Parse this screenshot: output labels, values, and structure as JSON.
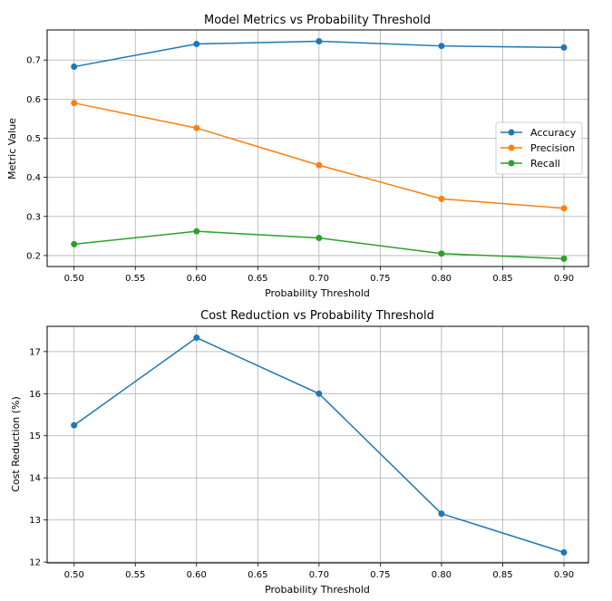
{
  "chart_data": [
    {
      "type": "line",
      "title": "Model Metrics vs Probability Threshold",
      "xlabel": "Probability Threshold",
      "ylabel": "Metric Value",
      "x": [
        0.5,
        0.6,
        0.7,
        0.8,
        0.9
      ],
      "xlim": [
        0.478,
        0.92
      ],
      "ylim": [
        0.172,
        0.777
      ],
      "xticks": [
        0.5,
        0.55,
        0.6,
        0.65,
        0.7,
        0.75,
        0.8,
        0.85,
        0.9
      ],
      "xtick_labels": [
        "0.50",
        "0.55",
        "0.60",
        "0.65",
        "0.70",
        "0.75",
        "0.80",
        "0.85",
        "0.90"
      ],
      "yticks": [
        0.2,
        0.3,
        0.4,
        0.5,
        0.6,
        0.7
      ],
      "ytick_labels": [
        "0.2",
        "0.3",
        "0.4",
        "0.5",
        "0.6",
        "0.7"
      ],
      "grid": true,
      "legend_position": "center-right",
      "series": [
        {
          "name": "Accuracy",
          "color": "#1f77b4",
          "values": [
            0.683,
            0.741,
            0.748,
            0.736,
            0.732
          ]
        },
        {
          "name": "Precision",
          "color": "#ff7f0e",
          "values": [
            0.59,
            0.526,
            0.431,
            0.345,
            0.321
          ]
        },
        {
          "name": "Recall",
          "color": "#2ca02c",
          "values": [
            0.229,
            0.262,
            0.245,
            0.205,
            0.192
          ]
        }
      ]
    },
    {
      "type": "line",
      "title": "Cost Reduction vs Probability Threshold",
      "xlabel": "Probability Threshold",
      "ylabel": "Cost Reduction (%)",
      "x": [
        0.5,
        0.6,
        0.7,
        0.8,
        0.9
      ],
      "xlim": [
        0.478,
        0.92
      ],
      "ylim": [
        11.98,
        17.6
      ],
      "xticks": [
        0.5,
        0.55,
        0.6,
        0.65,
        0.7,
        0.75,
        0.8,
        0.85,
        0.9
      ],
      "xtick_labels": [
        "0.50",
        "0.55",
        "0.60",
        "0.65",
        "0.70",
        "0.75",
        "0.80",
        "0.85",
        "0.90"
      ],
      "yticks": [
        12,
        13,
        14,
        15,
        16,
        17
      ],
      "ytick_labels": [
        "12",
        "13",
        "14",
        "15",
        "16",
        "17"
      ],
      "grid": true,
      "series": [
        {
          "name": "Cost Reduction",
          "color": "#1f77b4",
          "values": [
            15.25,
            17.33,
            16.0,
            13.15,
            12.23
          ]
        }
      ]
    }
  ]
}
